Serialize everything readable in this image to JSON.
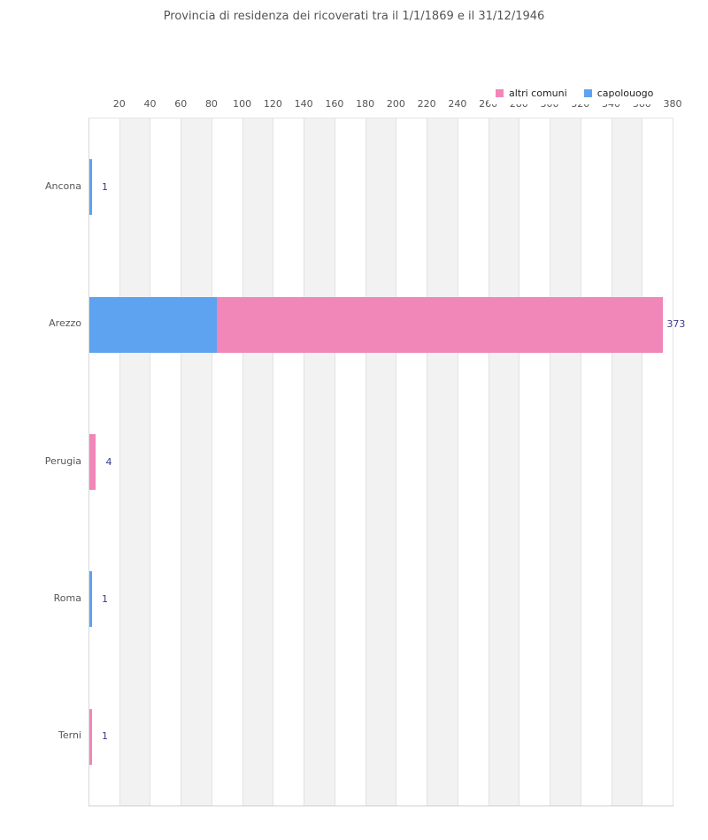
{
  "page": {
    "background": "#ffffff"
  },
  "chart_data": {
    "type": "bar",
    "orientation": "horizontal",
    "stacked": true,
    "title": "Provincia di residenza dei ricoverati tra il 1/1/1869 e il 31/12/1946",
    "categories": [
      "Ancona",
      "Arezzo",
      "Perugia",
      "Roma",
      "Terni"
    ],
    "series": [
      {
        "name": "capolouogo",
        "color": "#5da3f0",
        "values": [
          1,
          83,
          0,
          1,
          0
        ]
      },
      {
        "name": "altri comuni",
        "color": "#f186b8",
        "values": [
          0,
          290,
          4,
          0,
          1
        ]
      }
    ],
    "totals": [
      1,
      373,
      4,
      1,
      1
    ],
    "value_labels": [
      "1",
      "373",
      "4",
      "1",
      "1"
    ],
    "legend": [
      {
        "label": "altri comuni",
        "color": "#f186b8"
      },
      {
        "label": "capolouogo",
        "color": "#5da3f0"
      }
    ],
    "legend_position": "top-right",
    "x_ticks": [
      20,
      40,
      60,
      80,
      100,
      120,
      140,
      160,
      180,
      200,
      220,
      240,
      260,
      280,
      300,
      320,
      340,
      360,
      380
    ],
    "xlim": [
      0,
      380
    ],
    "grid": "alternating-vertical-bands",
    "colors": {
      "band": "#f2f2f2",
      "gridline": "#e2e2e2",
      "axis_text": "#555555",
      "category_text": "#555555",
      "value_label_text": "#3a3a8c",
      "title_text": "#555555"
    }
  }
}
